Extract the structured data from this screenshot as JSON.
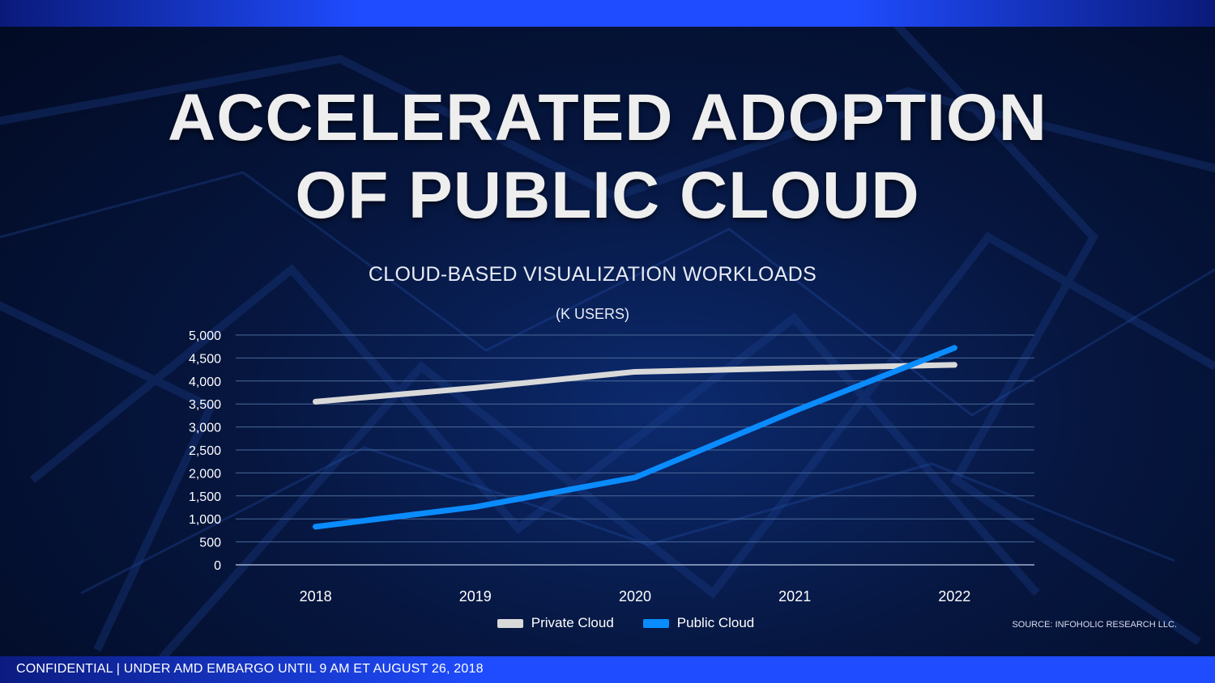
{
  "slide": {
    "title_line1": "ACCELERATED ADOPTION",
    "title_line2": "OF PUBLIC CLOUD",
    "footer": "CONFIDENTIAL | UNDER AMD EMBARGO UNTIL 9 AM ET  AUGUST 26, 2018",
    "source": "SOURCE: INFOHOLIC RESEARCH LLC."
  },
  "colors": {
    "private": "#d9d9d9",
    "public": "#0a8cff",
    "grid": "#4a6a9a"
  },
  "chart_data": {
    "type": "line",
    "title": "CLOUD-BASED VISUALIZATION WORKLOADS",
    "subtitle": "(K USERS)",
    "categories": [
      "2018",
      "2019",
      "2020",
      "2021",
      "2022"
    ],
    "ylim": [
      0,
      5000
    ],
    "yticks": [
      0,
      500,
      1000,
      1500,
      2000,
      2500,
      3000,
      3500,
      4000,
      4500,
      5000
    ],
    "ytick_labels": [
      "0",
      "500",
      "1,000",
      "1,500",
      "2,000",
      "2,500",
      "3,000",
      "3,500",
      "4,000",
      "4,500",
      "5,000"
    ],
    "series": [
      {
        "name": "Private Cloud",
        "values": [
          3550,
          3850,
          4200,
          4280,
          4350
        ]
      },
      {
        "name": "Public Cloud",
        "values": [
          830,
          1260,
          1900,
          3350,
          4720
        ]
      }
    ],
    "legend": "bottom-center",
    "grid": true
  }
}
